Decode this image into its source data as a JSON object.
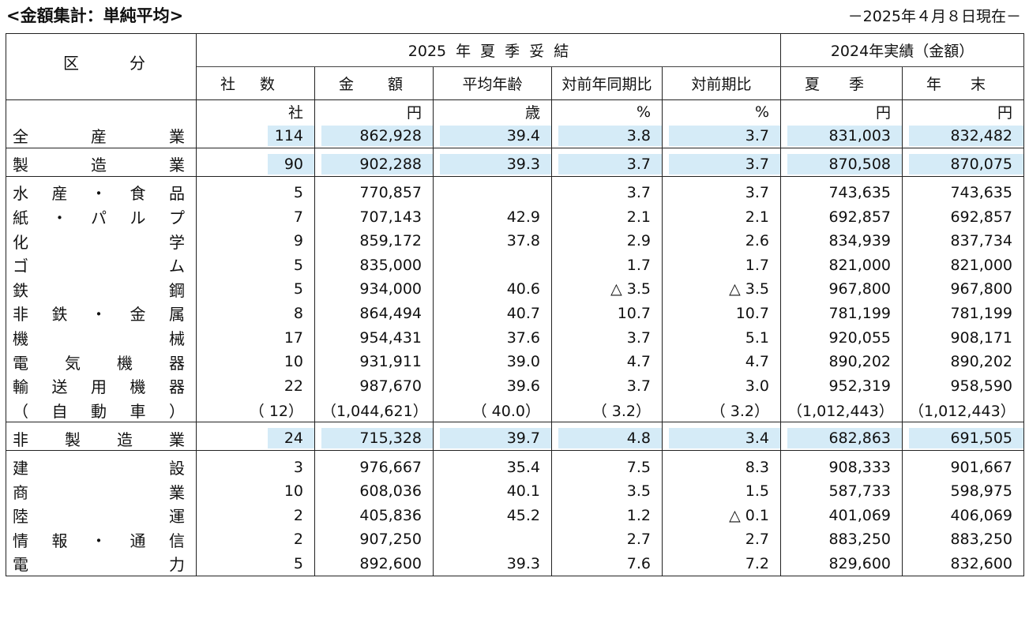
{
  "title": "<金額集計：単純平均>",
  "date": "－2025年４月８日現在－",
  "header": {
    "kubun": [
      "区",
      "分"
    ],
    "group2025": [
      "2025",
      "年",
      "夏",
      "季",
      "妥",
      "結"
    ],
    "group2024": "2024年実績（金額）",
    "cols": [
      [
        "社",
        "数"
      ],
      [
        "金",
        "額"
      ],
      "平均年齢",
      "対前年同期比",
      "対前期比",
      [
        "夏",
        "季"
      ],
      [
        "年",
        "末"
      ]
    ],
    "units": [
      "社",
      "円",
      "歳",
      "%",
      "%",
      "円",
      "円"
    ]
  },
  "sections": [
    {
      "rows": [
        {
          "label": [
            "全",
            "産",
            "業"
          ],
          "vals": [
            "114",
            "862,928",
            "39.4",
            "3.8",
            "3.7",
            "831,003",
            "832,482"
          ],
          "highlight": true
        }
      ]
    },
    {
      "rows": [
        {
          "label": [
            "製",
            "造",
            "業"
          ],
          "vals": [
            "90",
            "902,288",
            "39.3",
            "3.7",
            "3.7",
            "870,508",
            "870,075"
          ],
          "highlight": true
        }
      ]
    },
    {
      "rows": [
        {
          "label": [
            "水",
            "産",
            "・",
            "食",
            "品"
          ],
          "vals": [
            "5",
            "770,857",
            "",
            "3.7",
            "3.7",
            "743,635",
            "743,635"
          ]
        },
        {
          "label": [
            "紙",
            "・",
            "パ",
            "ル",
            "プ"
          ],
          "vals": [
            "7",
            "707,143",
            "42.9",
            "2.1",
            "2.1",
            "692,857",
            "692,857"
          ]
        },
        {
          "label": [
            "化",
            "学"
          ],
          "vals": [
            "9",
            "859,172",
            "37.8",
            "2.9",
            "2.6",
            "834,939",
            "837,734"
          ]
        },
        {
          "label": [
            "ゴ",
            "ム"
          ],
          "vals": [
            "5",
            "835,000",
            "",
            "1.7",
            "1.7",
            "821,000",
            "821,000"
          ]
        },
        {
          "label": [
            "鉄",
            "鋼"
          ],
          "vals": [
            "5",
            "934,000",
            "40.6",
            "△ 3.5",
            "△ 3.5",
            "967,800",
            "967,800"
          ]
        },
        {
          "label": [
            "非",
            "鉄",
            "・",
            "金",
            "属"
          ],
          "vals": [
            "8",
            "864,494",
            "40.7",
            "10.7",
            "10.7",
            "781,199",
            "781,199"
          ]
        },
        {
          "label": [
            "機",
            "械"
          ],
          "vals": [
            "17",
            "954,431",
            "37.6",
            "3.7",
            "5.1",
            "920,055",
            "908,171"
          ]
        },
        {
          "label": [
            "電",
            "気",
            "機",
            "器"
          ],
          "vals": [
            "10",
            "931,911",
            "39.0",
            "4.7",
            "4.7",
            "890,202",
            "890,202"
          ]
        },
        {
          "label": [
            "輸",
            "送",
            "用",
            "機",
            "器"
          ],
          "vals": [
            "22",
            "987,670",
            "39.6",
            "3.7",
            "3.0",
            "952,319",
            "958,590"
          ]
        },
        {
          "label": [
            "（",
            "自",
            "動",
            "車",
            "）"
          ],
          "vals": [
            "（ 12）",
            "（1,044,621）",
            "（ 40.0）",
            "（ 3.2）",
            "（ 3.2）",
            "（1,012,443）",
            "（1,012,443）"
          ]
        }
      ]
    },
    {
      "rows": [
        {
          "label": [
            "非",
            "製",
            "造",
            "業"
          ],
          "vals": [
            "24",
            "715,328",
            "39.7",
            "4.8",
            "3.4",
            "682,863",
            "691,505"
          ],
          "highlight": true
        }
      ]
    },
    {
      "rows": [
        {
          "label": [
            "建",
            "設"
          ],
          "vals": [
            "3",
            "976,667",
            "35.4",
            "7.5",
            "8.3",
            "908,333",
            "901,667"
          ]
        },
        {
          "label": [
            "商",
            "業"
          ],
          "vals": [
            "10",
            "608,036",
            "40.1",
            "3.5",
            "1.5",
            "587,733",
            "598,975"
          ]
        },
        {
          "label": [
            "陸",
            "運"
          ],
          "vals": [
            "2",
            "405,836",
            "45.2",
            "1.2",
            "△ 0.1",
            "401,069",
            "406,069"
          ]
        },
        {
          "label": [
            "情",
            "報",
            "・",
            "通",
            "信"
          ],
          "vals": [
            "2",
            "907,250",
            "",
            "2.7",
            "2.7",
            "883,250",
            "883,250"
          ]
        },
        {
          "label": [
            "電",
            "力"
          ],
          "vals": [
            "5",
            "892,600",
            "39.3",
            "7.6",
            "7.2",
            "829,600",
            "832,600"
          ]
        }
      ]
    }
  ],
  "colors": {
    "highlight": "#d5ebf7",
    "border": "#222222"
  }
}
